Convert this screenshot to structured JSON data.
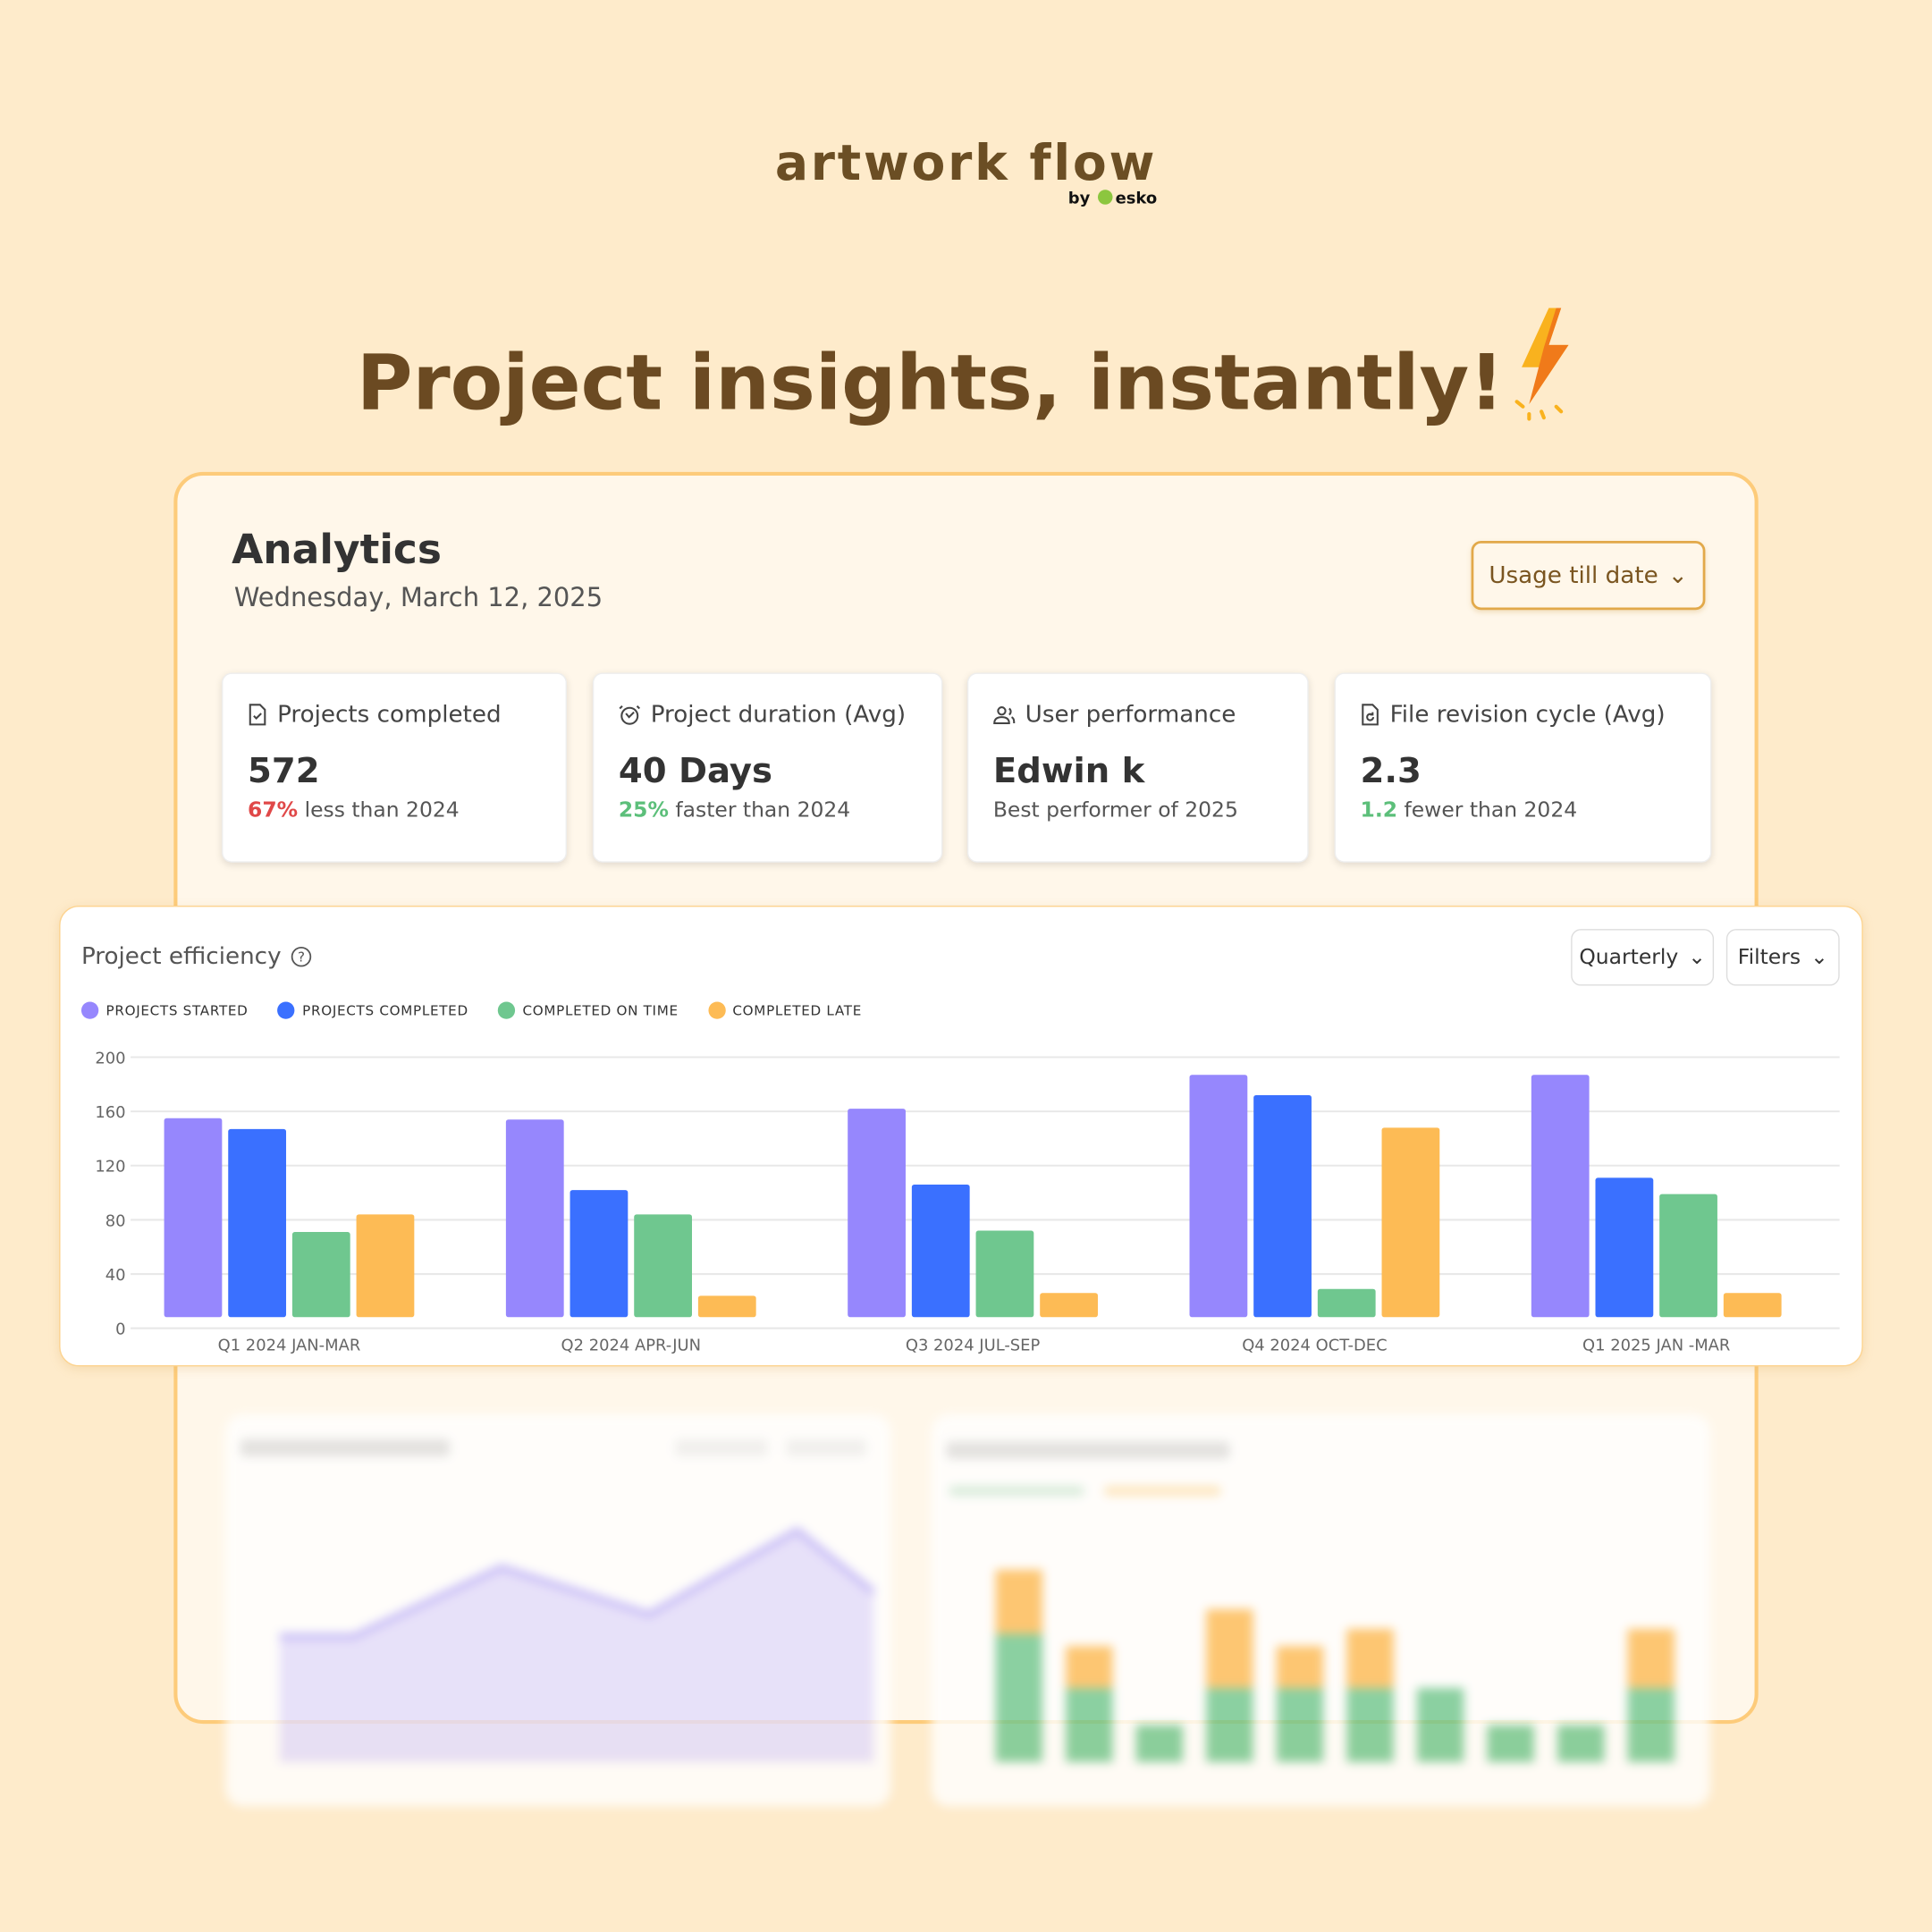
{
  "brand": {
    "logo_text": "artwork flow",
    "by_text": "by",
    "partner": "esko"
  },
  "headline": "Project insights, instantly!",
  "analytics": {
    "title": "Analytics",
    "date": "Wednesday, March 12, 2025",
    "range_select": "Usage till date",
    "cards": [
      {
        "icon": "file-check-icon",
        "label": "Projects completed",
        "value": "572",
        "delta": "67%",
        "delta_color": "#E04848",
        "note": "less than 2024"
      },
      {
        "icon": "clock-icon",
        "label": "Project duration (Avg)",
        "value": "40 Days",
        "delta": "25%",
        "delta_color": "#5CBF7A",
        "note": "faster than 2024"
      },
      {
        "icon": "user-icon",
        "label": "User performance",
        "value": "Edwin k",
        "note": "Best performer of 2025"
      },
      {
        "icon": "file-revision-icon",
        "label": "File revision cycle (Avg)",
        "value": "2.3",
        "delta": "1.2",
        "delta_color": "#5CBF7A",
        "note": "fewer than 2024"
      }
    ]
  },
  "efficiency": {
    "title": "Project efficiency",
    "period_select": "Quarterly",
    "filters_label": "Filters"
  },
  "chart_data": {
    "type": "bar",
    "title": "Project efficiency",
    "categories": [
      "Q1 2024 JAN-MAR",
      "Q2 2024 APR-JUN",
      "Q3 2024 JUL-SEP",
      "Q4 2024 OCT-DEC",
      "Q1 2025 JAN -MAR"
    ],
    "series": [
      {
        "name": "PROJECTS STARTED",
        "color": "#9687FD",
        "values": [
          155,
          154,
          162,
          187,
          187
        ]
      },
      {
        "name": "PROJECTS COMPLETED",
        "color": "#3A70FF",
        "values": [
          147,
          102,
          106,
          172,
          111
        ]
      },
      {
        "name": "COMPLETED ON TIME",
        "color": "#6FC78F",
        "values": [
          71,
          84,
          72,
          29,
          99
        ]
      },
      {
        "name": "COMPLETED LATE",
        "color": "#FDBB55",
        "values": [
          84,
          24,
          26,
          148,
          26
        ]
      }
    ],
    "yticks": [
      "0",
      "40",
      "80",
      "120",
      "160",
      "200"
    ],
    "ylim": [
      0,
      200
    ],
    "grid": true,
    "legend": "top-left"
  }
}
